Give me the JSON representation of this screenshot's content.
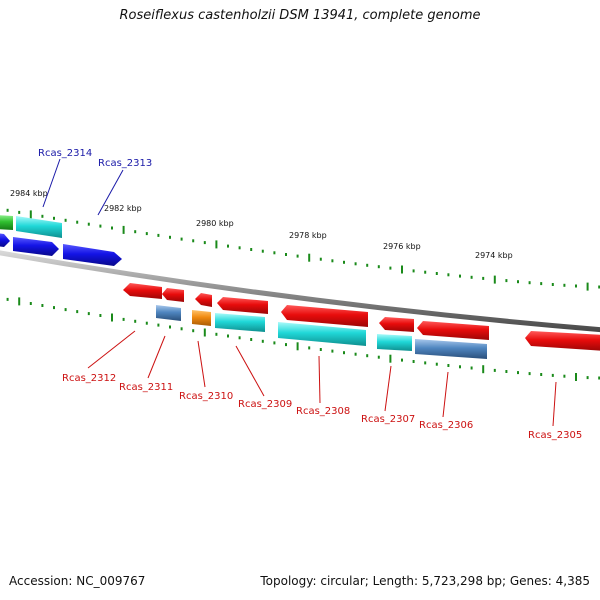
{
  "title": "Roseiflexus castenholzii DSM 13941, complete genome",
  "footer": {
    "accession": "Accession: NC_009767",
    "summary": "Topology: circular; Length: 5,723,298 bp; Genes: 4,385"
  },
  "ruler": {
    "labels": [
      "2984 kbp",
      "2982 kbp",
      "2980 kbp",
      "2978 kbp",
      "2976 kbp",
      "2974 kbp"
    ]
  },
  "colors": {
    "backbone": "#8c8c8c",
    "tick": "#1a8a1a",
    "forward_label": "#1a1aa8",
    "reverse_label": "#cc1111",
    "red": "#e01010",
    "cyan": "#20d8d8",
    "blue": "#1a1ae0",
    "steel": "#4f86c0",
    "orange": "#f08a10",
    "green": "#30c030"
  },
  "genes": {
    "forward": [
      "Rcas_2314",
      "Rcas_2313"
    ],
    "reverse": [
      "Rcas_2312",
      "Rcas_2311",
      "Rcas_2310",
      "Rcas_2309",
      "Rcas_2308",
      "Rcas_2307",
      "Rcas_2306",
      "Rcas_2305"
    ]
  }
}
